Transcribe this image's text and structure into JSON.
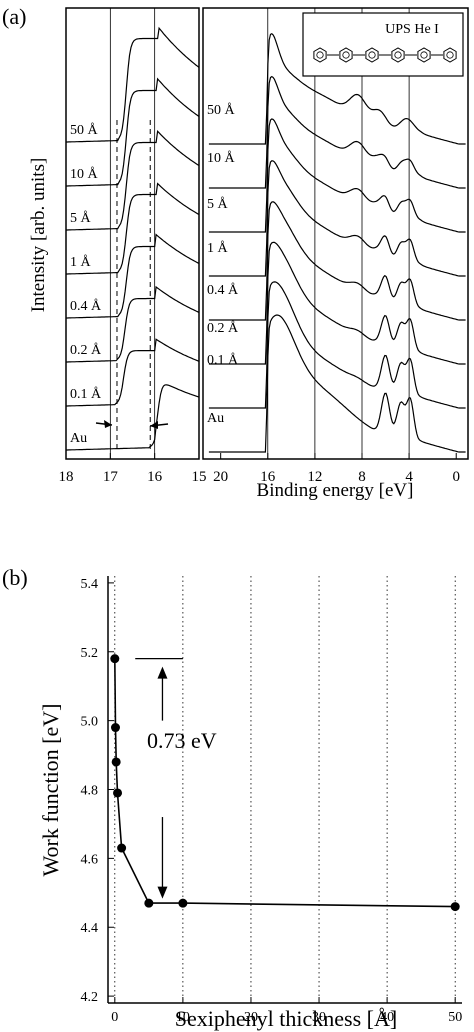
{
  "panel_labels": {
    "a": "(a)",
    "b": "(b)"
  },
  "chart_data": [
    {
      "type": "line",
      "panel": "(a)",
      "subpanel": "left",
      "ylabel": "Intensity [arb. units]",
      "xlim": [
        18,
        15
      ],
      "x_ticks": [
        "18",
        "17",
        "16",
        "15"
      ],
      "x_reversed": true,
      "dashed_lines": [
        16.85,
        16.1
      ],
      "series_labels": [
        "50 Å",
        "10 Å",
        "5 Å",
        "1 Å",
        "0.4 Å",
        "0.2 Å",
        "0.1 Å",
        "Au"
      ]
    },
    {
      "type": "line",
      "panel": "(a)",
      "subpanel": "right",
      "title": "UPS He I",
      "xlabel": "Binding energy [eV]",
      "xlim": [
        21.5,
        -1
      ],
      "x_ticks": [
        "20",
        "16",
        "12",
        "8",
        "4",
        "0"
      ],
      "x_reversed": true,
      "vertical_lines": [
        16,
        12,
        8,
        4
      ],
      "series_labels": [
        "50 Å",
        "10 Å",
        "5 Å",
        "1 Å",
        "0.4 Å",
        "0.2 Å",
        "0.1 Å",
        "Au"
      ]
    },
    {
      "type": "scatter",
      "panel": "(b)",
      "xlabel": "Sexiphenyl thickness [Å]",
      "ylabel": "Work function [eV]",
      "xlim": [
        -1,
        51
      ],
      "ylim": [
        4.18,
        5.42
      ],
      "x_ticks": [
        0,
        10,
        20,
        30,
        40,
        50
      ],
      "y_ticks": [
        4.2,
        4.4,
        4.6,
        4.8,
        5.0,
        5.2,
        5.4
      ],
      "points": [
        {
          "x": 0,
          "y": 5.18
        },
        {
          "x": 0.1,
          "y": 4.98
        },
        {
          "x": 0.2,
          "y": 4.88
        },
        {
          "x": 0.4,
          "y": 4.79
        },
        {
          "x": 1,
          "y": 4.63
        },
        {
          "x": 5,
          "y": 4.47
        },
        {
          "x": 10,
          "y": 4.47
        },
        {
          "x": 50,
          "y": 4.46
        }
      ],
      "annotation": "0.73 eV",
      "annotation_range": [
        4.46,
        5.18
      ]
    }
  ]
}
